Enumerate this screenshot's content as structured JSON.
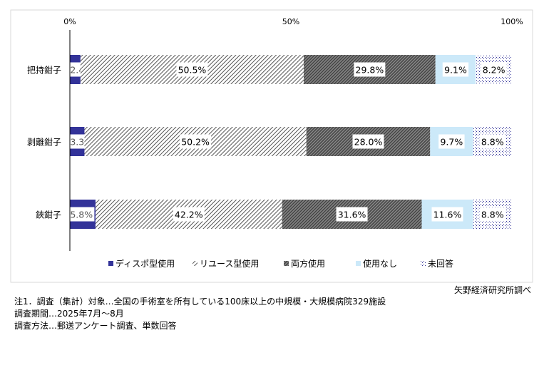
{
  "chart_data": {
    "type": "bar",
    "orientation": "horizontal-stacked-100",
    "categories": [
      "把持鉗子",
      "剥離鉗子",
      "鋏鉗子"
    ],
    "series": [
      {
        "name": "ディスポ型使用",
        "values": [
          2.4,
          3.3,
          5.8
        ],
        "color": "#333399",
        "pattern": "solid"
      },
      {
        "name": "リユース型使用",
        "values": [
          50.5,
          50.2,
          42.2
        ],
        "color": "#555555",
        "pattern": "diagonal-light"
      },
      {
        "name": "両方使用",
        "values": [
          29.8,
          28.0,
          31.6
        ],
        "color": "#555555",
        "pattern": "diagonal-dense"
      },
      {
        "name": "使用なし",
        "values": [
          9.1,
          9.7,
          11.6
        ],
        "color": "#cce9f9",
        "pattern": "solid"
      },
      {
        "name": "未回答",
        "values": [
          8.2,
          8.8,
          8.8
        ],
        "color": "#333399",
        "pattern": "dotted"
      }
    ],
    "xticks": [
      "0%",
      "50%",
      "100%"
    ],
    "xlim": [
      0,
      100
    ],
    "legend": "bottom",
    "grid": false
  },
  "notes": [
    "注1．調査（集計）対象…全国の手術室を所有している100床以上の中規模・大規模病院329施設",
    "調査期間…2025年7月～8月",
    "調査方法…郵送アンケート調査、単数回答"
  ],
  "source": "矢野経済研究所調べ"
}
